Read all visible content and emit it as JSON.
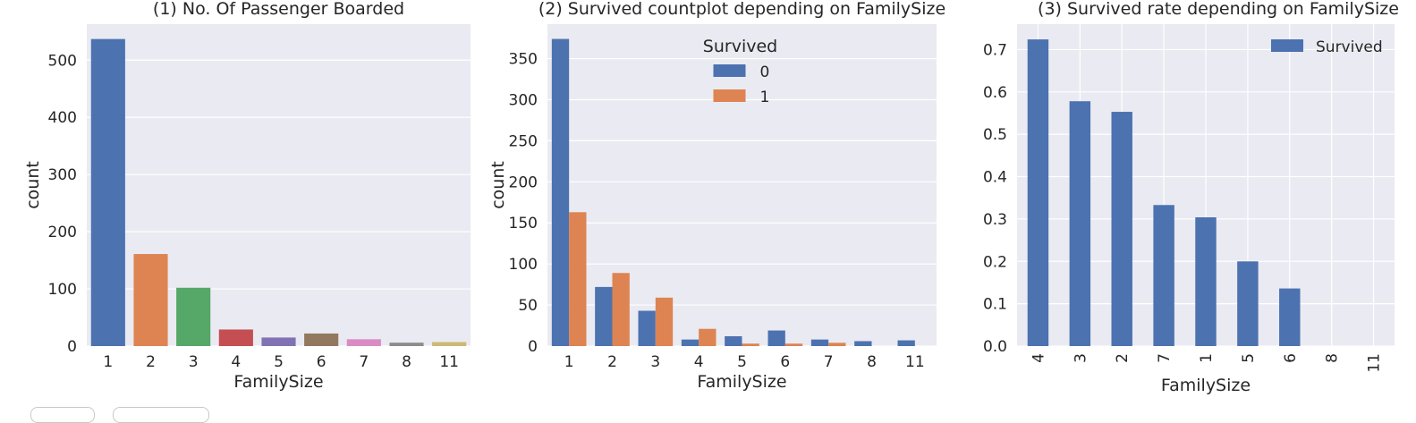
{
  "chart_data": [
    {
      "type": "bar",
      "title": "(1) No. Of Passenger Boarded",
      "xlabel": "FamilySize",
      "ylabel": "count",
      "categories": [
        "1",
        "2",
        "3",
        "4",
        "5",
        "6",
        "7",
        "8",
        "11"
      ],
      "values": [
        537,
        161,
        102,
        29,
        15,
        22,
        12,
        6,
        7
      ],
      "colors": [
        "#4c72b0",
        "#dd8452",
        "#55a868",
        "#c44e52",
        "#8172b3",
        "#937860",
        "#da8bc3",
        "#8c8c8c",
        "#ccb974"
      ],
      "ylim": [
        0,
        563
      ],
      "yticks": [
        0,
        100,
        200,
        300,
        400,
        500
      ],
      "grid": true
    },
    {
      "type": "bar",
      "title": "(2) Survived countplot depending on FamilySize",
      "xlabel": "FamilySize",
      "ylabel": "count",
      "categories": [
        "1",
        "2",
        "3",
        "4",
        "5",
        "6",
        "7",
        "8",
        "11"
      ],
      "series": [
        {
          "name": "0",
          "values": [
            374,
            72,
            43,
            8,
            12,
            19,
            8,
            6,
            7
          ],
          "color": "#4c72b0"
        },
        {
          "name": "1",
          "values": [
            163,
            89,
            59,
            21,
            3,
            3,
            4,
            0,
            0
          ],
          "color": "#dd8452"
        }
      ],
      "legend_title": "Survived",
      "legend_position": "top-center",
      "ylim": [
        0,
        392
      ],
      "yticks": [
        0,
        50,
        100,
        150,
        200,
        250,
        300,
        350
      ],
      "grid": true
    },
    {
      "type": "bar",
      "title": "(3) Survived rate depending on FamilySize",
      "xlabel": "FamilySize",
      "ylabel": "",
      "categories": [
        "4",
        "3",
        "2",
        "7",
        "1",
        "5",
        "6",
        "8",
        "11"
      ],
      "series": [
        {
          "name": "Survived",
          "values": [
            0.724,
            0.578,
            0.553,
            0.333,
            0.304,
            0.2,
            0.136,
            0.0,
            0.0
          ],
          "color": "#4c72b0"
        }
      ],
      "legend_position": "top-right",
      "xtick_rotation": 90,
      "ylim": [
        0,
        0.76
      ],
      "yticks": [
        "0.0",
        "0.1",
        "0.2",
        "0.3",
        "0.4",
        "0.5",
        "0.6",
        "0.7"
      ],
      "grid": true
    }
  ]
}
